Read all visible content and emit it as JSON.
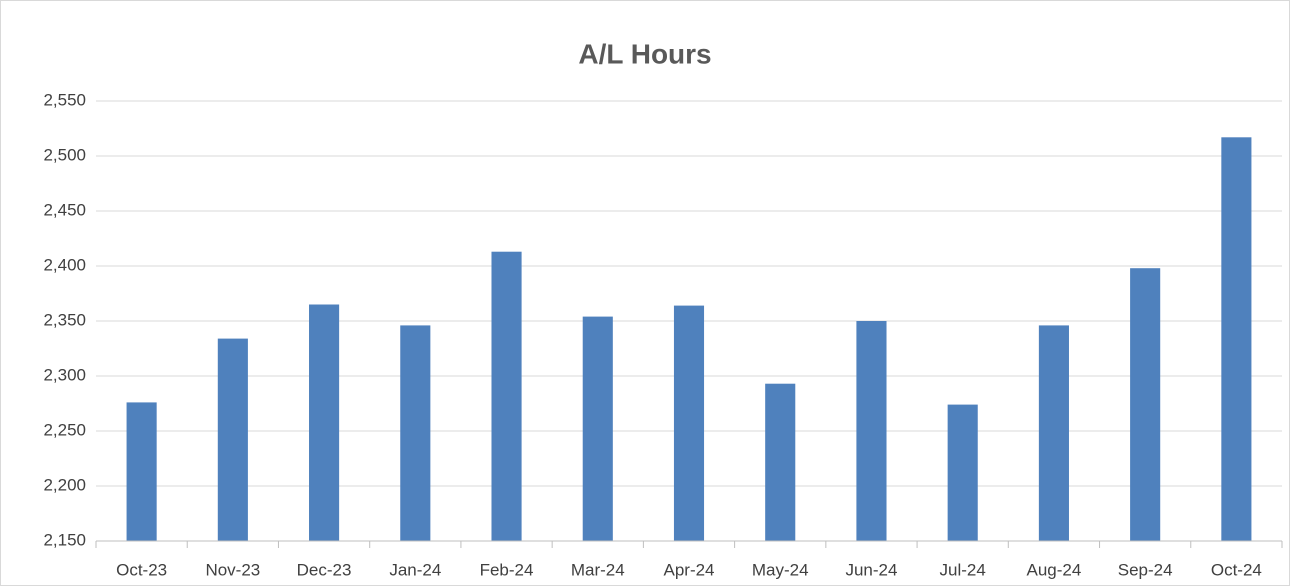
{
  "chart_data": {
    "type": "bar",
    "title": "A/L Hours",
    "categories": [
      "Oct-23",
      "Nov-23",
      "Dec-23",
      "Jan-24",
      "Feb-24",
      "Mar-24",
      "Apr-24",
      "May-24",
      "Jun-24",
      "Jul-24",
      "Aug-24",
      "Sep-24",
      "Oct-24"
    ],
    "values": [
      2276,
      2334,
      2365,
      2346,
      2413,
      2354,
      2364,
      2293,
      2350,
      2274,
      2346,
      2398,
      2517
    ],
    "color": "#4f81bd",
    "ylim": [
      2150,
      2550
    ],
    "yticks": [
      {
        "value": 2150,
        "label": "2,150"
      },
      {
        "value": 2200,
        "label": "2,200"
      },
      {
        "value": 2250,
        "label": "2,250"
      },
      {
        "value": 2300,
        "label": "2,300"
      },
      {
        "value": 2350,
        "label": "2,350"
      },
      {
        "value": 2400,
        "label": "2,400"
      },
      {
        "value": 2450,
        "label": "2,450"
      },
      {
        "value": 2500,
        "label": "2,500"
      },
      {
        "value": 2550,
        "label": "2,550"
      }
    ],
    "grid": true
  }
}
